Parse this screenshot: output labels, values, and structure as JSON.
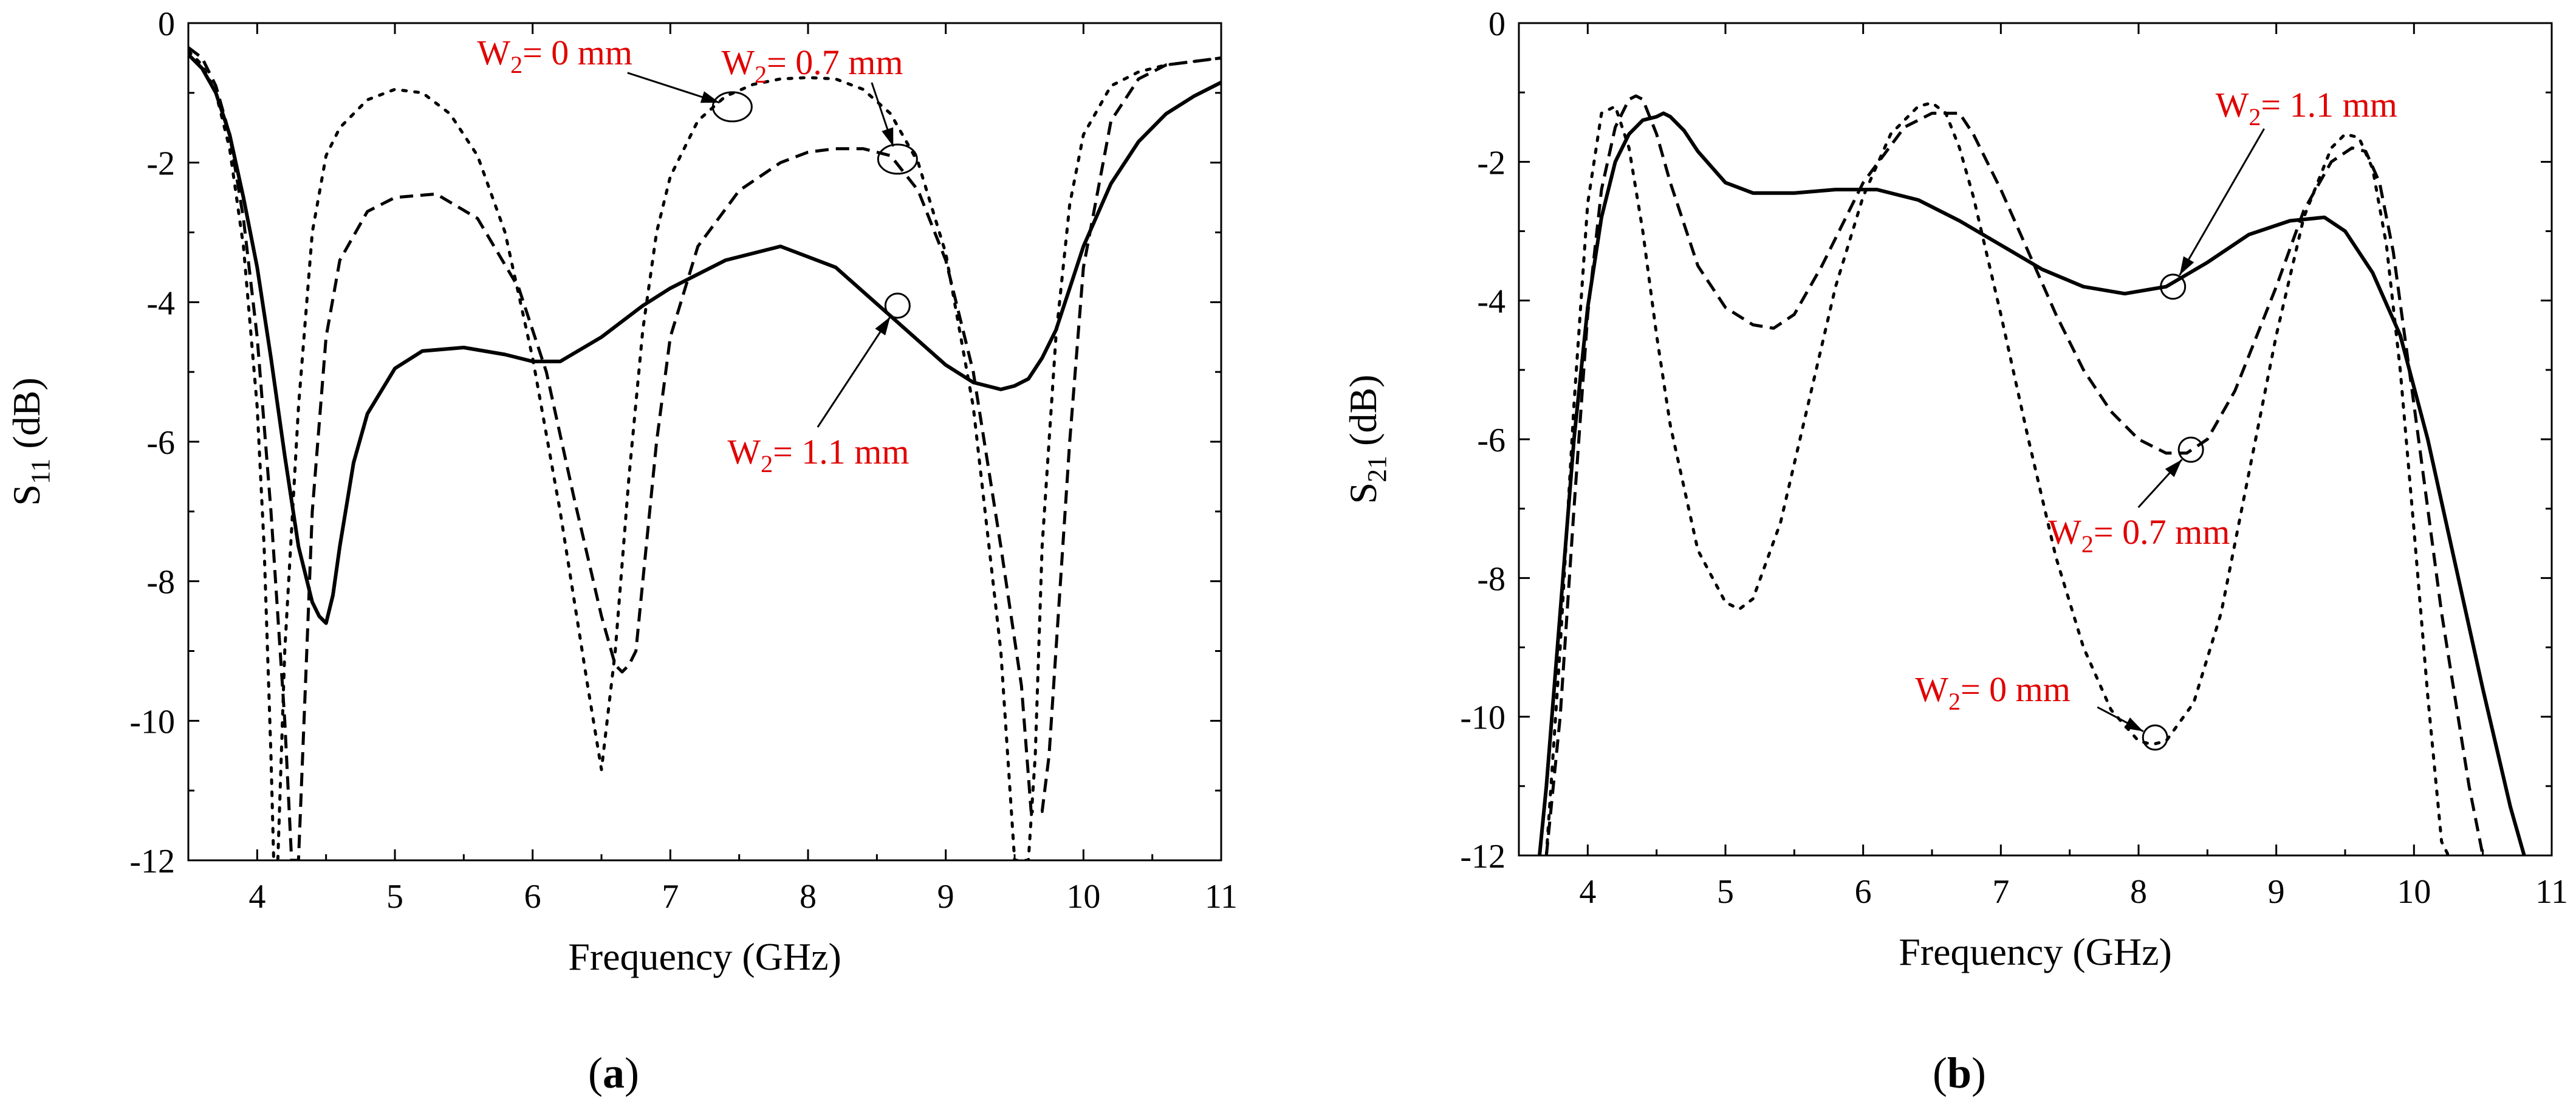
{
  "chart_data": [
    {
      "type": "line",
      "panel_label": "a",
      "xlabel": "Frequency (GHz)",
      "ylabel_main": "S",
      "ylabel_sub": "11",
      "ylabel_unit": " (dB)",
      "xlim": [
        3.5,
        11
      ],
      "ylim": [
        -12,
        0
      ],
      "xticks": [
        4,
        5,
        6,
        7,
        8,
        9,
        10,
        11
      ],
      "yticks": [
        0,
        -2,
        -4,
        -6,
        -8,
        -10,
        -12
      ],
      "series": [
        {
          "name": "W2 = 0 mm",
          "style": "dotted",
          "x": [
            3.5,
            3.6,
            3.7,
            3.8,
            3.9,
            4.0,
            4.05,
            4.1,
            4.12,
            4.15,
            4.2,
            4.3,
            4.4,
            4.5,
            4.6,
            4.8,
            5.0,
            5.2,
            5.4,
            5.6,
            5.8,
            6.0,
            6.2,
            6.4,
            6.5,
            6.6,
            6.7,
            6.8,
            6.9,
            7.0,
            7.2,
            7.4,
            7.6,
            7.8,
            8.0,
            8.2,
            8.4,
            8.6,
            8.8,
            9.0,
            9.2,
            9.4,
            9.5,
            9.55,
            9.6,
            9.65,
            9.7,
            9.8,
            9.9,
            10.0,
            10.2,
            10.4,
            10.6,
            10.8,
            11.0
          ],
          "y": [
            -0.4,
            -0.6,
            -1.0,
            -1.8,
            -3.2,
            -5.5,
            -7.5,
            -10.5,
            -12.0,
            -12.0,
            -9.0,
            -5.5,
            -3.0,
            -1.9,
            -1.5,
            -1.1,
            -0.95,
            -1.0,
            -1.3,
            -1.9,
            -3.0,
            -4.8,
            -7.0,
            -9.5,
            -10.7,
            -9.0,
            -6.5,
            -4.4,
            -3.0,
            -2.2,
            -1.4,
            -1.05,
            -0.88,
            -0.8,
            -0.78,
            -0.8,
            -0.95,
            -1.3,
            -2.0,
            -3.3,
            -5.5,
            -9.0,
            -12.0,
            -12.0,
            -12.0,
            -10.5,
            -7.5,
            -4.5,
            -2.6,
            -1.6,
            -0.9,
            -0.7,
            -0.6,
            -0.55,
            -0.5
          ]
        },
        {
          "name": "W2 = 0.7 mm",
          "style": "dashed",
          "x": [
            3.5,
            3.6,
            3.7,
            3.8,
            3.9,
            4.0,
            4.1,
            4.2,
            4.25,
            4.3,
            4.35,
            4.4,
            4.5,
            4.6,
            4.8,
            5.0,
            5.3,
            5.6,
            5.9,
            6.1,
            6.3,
            6.5,
            6.6,
            6.65,
            6.7,
            6.75,
            6.8,
            6.9,
            7.0,
            7.2,
            7.5,
            7.8,
            8.0,
            8.2,
            8.4,
            8.6,
            8.8,
            9.0,
            9.2,
            9.4,
            9.55,
            9.62,
            9.7,
            9.75,
            9.8,
            9.9,
            10.0,
            10.2,
            10.4,
            10.6,
            10.8,
            11.0
          ],
          "y": [
            -0.35,
            -0.5,
            -0.9,
            -1.6,
            -2.8,
            -4.5,
            -7.0,
            -10.0,
            -12.0,
            -12.0,
            -9.5,
            -7.0,
            -4.5,
            -3.4,
            -2.7,
            -2.5,
            -2.45,
            -2.8,
            -3.8,
            -5.0,
            -6.8,
            -8.5,
            -9.2,
            -9.3,
            -9.2,
            -9.0,
            -8.0,
            -6.0,
            -4.5,
            -3.2,
            -2.4,
            -2.0,
            -1.85,
            -1.8,
            -1.8,
            -1.9,
            -2.4,
            -3.4,
            -5.0,
            -7.5,
            -9.5,
            -11.3,
            -11.3,
            -10.5,
            -9.0,
            -6.0,
            -3.5,
            -1.4,
            -0.8,
            -0.6,
            -0.55,
            -0.5
          ]
        },
        {
          "name": "W2 = 1.1 mm",
          "style": "solid",
          "x": [
            3.5,
            3.6,
            3.7,
            3.8,
            3.9,
            4.0,
            4.1,
            4.2,
            4.3,
            4.4,
            4.45,
            4.5,
            4.55,
            4.6,
            4.7,
            4.8,
            5.0,
            5.2,
            5.5,
            5.8,
            6.0,
            6.2,
            6.5,
            6.8,
            7.0,
            7.4,
            7.8,
            8.2,
            8.6,
            9.0,
            9.2,
            9.4,
            9.5,
            9.6,
            9.7,
            9.8,
            9.9,
            10.0,
            10.2,
            10.4,
            10.6,
            10.8,
            11.0
          ],
          "y": [
            -0.45,
            -0.65,
            -1.0,
            -1.6,
            -2.5,
            -3.5,
            -4.8,
            -6.2,
            -7.5,
            -8.3,
            -8.5,
            -8.6,
            -8.2,
            -7.5,
            -6.3,
            -5.6,
            -4.95,
            -4.7,
            -4.65,
            -4.75,
            -4.85,
            -4.85,
            -4.5,
            -4.05,
            -3.8,
            -3.4,
            -3.2,
            -3.5,
            -4.2,
            -4.9,
            -5.15,
            -5.25,
            -5.2,
            -5.1,
            -4.8,
            -4.4,
            -3.8,
            -3.2,
            -2.3,
            -1.7,
            -1.3,
            -1.05,
            -0.85
          ]
        }
      ],
      "annotations": [
        {
          "text_main": "W",
          "text_sub": "2",
          "text_rest": "= 0 mm",
          "target": [
            7.45,
            -1.2
          ]
        },
        {
          "text_main": "W",
          "text_sub": "2",
          "text_rest": "= 0.7 mm",
          "target": [
            8.65,
            -1.95
          ]
        },
        {
          "text_main": "W",
          "text_sub": "2",
          "text_rest": "= 1.1 mm",
          "target": [
            8.65,
            -4.05
          ]
        }
      ]
    },
    {
      "type": "line",
      "panel_label": "b",
      "xlabel": "Frequency (GHz)",
      "ylabel_main": "S",
      "ylabel_sub": "21",
      "ylabel_unit": " (dB)",
      "xlim": [
        3.5,
        11
      ],
      "ylim": [
        -12,
        0
      ],
      "xticks": [
        4,
        5,
        6,
        7,
        8,
        9,
        10,
        11
      ],
      "yticks": [
        0,
        -2,
        -4,
        -6,
        -8,
        -10,
        -12
      ],
      "series": [
        {
          "name": "W2 = 0 mm",
          "style": "dotted",
          "x": [
            3.7,
            3.8,
            3.9,
            4.0,
            4.1,
            4.2,
            4.3,
            4.4,
            4.5,
            4.6,
            4.8,
            5.0,
            5.1,
            5.2,
            5.4,
            5.6,
            5.8,
            6.0,
            6.2,
            6.4,
            6.5,
            6.6,
            6.7,
            6.8,
            7.0,
            7.2,
            7.4,
            7.6,
            7.8,
            8.0,
            8.1,
            8.2,
            8.4,
            8.6,
            8.8,
            9.0,
            9.2,
            9.4,
            9.5,
            9.6,
            9.7,
            9.8,
            9.9,
            10.0,
            10.1,
            10.2,
            10.25
          ],
          "y": [
            -12.0,
            -9.0,
            -5.5,
            -2.6,
            -1.3,
            -1.2,
            -1.8,
            -3.0,
            -4.5,
            -5.8,
            -7.6,
            -8.35,
            -8.45,
            -8.3,
            -7.2,
            -5.5,
            -3.8,
            -2.5,
            -1.6,
            -1.2,
            -1.15,
            -1.3,
            -1.8,
            -2.5,
            -4.2,
            -6.0,
            -7.7,
            -9.0,
            -9.9,
            -10.35,
            -10.4,
            -10.35,
            -9.8,
            -8.5,
            -6.5,
            -4.5,
            -2.8,
            -1.8,
            -1.6,
            -1.65,
            -2.1,
            -3.2,
            -5.0,
            -7.3,
            -9.7,
            -11.8,
            -12.0
          ]
        },
        {
          "name": "W2 = 0.7 mm",
          "style": "dashed",
          "x": [
            3.7,
            3.8,
            3.9,
            4.0,
            4.1,
            4.2,
            4.3,
            4.35,
            4.4,
            4.5,
            4.6,
            4.8,
            5.0,
            5.2,
            5.35,
            5.5,
            5.7,
            6.0,
            6.3,
            6.5,
            6.65,
            6.7,
            6.8,
            7.0,
            7.2,
            7.4,
            7.6,
            7.8,
            8.0,
            8.2,
            8.35,
            8.5,
            8.7,
            9.0,
            9.2,
            9.4,
            9.55,
            9.65,
            9.75,
            9.85,
            10.0,
            10.2,
            10.4,
            10.5
          ],
          "y": [
            -12.0,
            -10.0,
            -7.0,
            -4.2,
            -2.4,
            -1.5,
            -1.1,
            -1.05,
            -1.1,
            -1.6,
            -2.3,
            -3.5,
            -4.1,
            -4.35,
            -4.4,
            -4.2,
            -3.5,
            -2.3,
            -1.5,
            -1.3,
            -1.3,
            -1.3,
            -1.6,
            -2.4,
            -3.3,
            -4.2,
            -5.0,
            -5.6,
            -6.0,
            -6.2,
            -6.2,
            -6.0,
            -5.3,
            -3.8,
            -2.7,
            -2.0,
            -1.8,
            -1.85,
            -2.3,
            -3.3,
            -5.5,
            -8.5,
            -11.0,
            -12.0
          ]
        },
        {
          "name": "W2 = 1.1 mm",
          "style": "solid",
          "x": [
            3.65,
            3.7,
            3.8,
            3.9,
            4.0,
            4.1,
            4.2,
            4.3,
            4.4,
            4.5,
            4.55,
            4.6,
            4.7,
            4.8,
            5.0,
            5.2,
            5.5,
            5.8,
            6.1,
            6.4,
            6.7,
            7.0,
            7.3,
            7.6,
            7.9,
            8.2,
            8.5,
            8.8,
            9.1,
            9.35,
            9.5,
            9.7,
            9.9,
            10.1,
            10.3,
            10.5,
            10.7,
            10.8
          ],
          "y": [
            -12.0,
            -11.0,
            -8.5,
            -6.0,
            -4.1,
            -2.8,
            -2.0,
            -1.6,
            -1.4,
            -1.35,
            -1.3,
            -1.35,
            -1.55,
            -1.85,
            -2.3,
            -2.45,
            -2.45,
            -2.4,
            -2.4,
            -2.55,
            -2.85,
            -3.2,
            -3.55,
            -3.8,
            -3.9,
            -3.8,
            -3.45,
            -3.05,
            -2.85,
            -2.8,
            -3.0,
            -3.6,
            -4.5,
            -6.0,
            -7.8,
            -9.6,
            -11.3,
            -12.0
          ]
        }
      ],
      "annotations": [
        {
          "text_main": "W",
          "text_sub": "2",
          "text_rest": "= 1.1 mm",
          "target": [
            8.25,
            -3.8
          ]
        },
        {
          "text_main": "W",
          "text_sub": "2",
          "text_rest": "= 0.7 mm",
          "target": [
            8.38,
            -6.15
          ]
        },
        {
          "text_main": "W",
          "text_sub": "2",
          "text_rest": "= 0 mm",
          "target": [
            8.12,
            -10.3
          ]
        }
      ]
    }
  ]
}
